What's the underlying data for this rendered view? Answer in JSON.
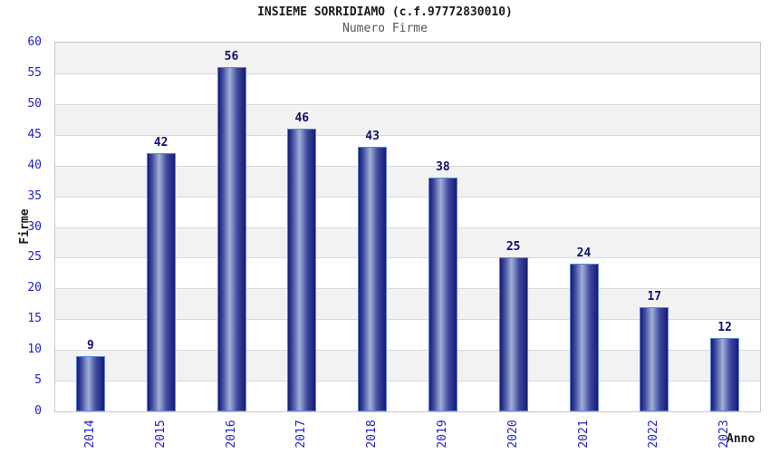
{
  "chart_data": {
    "type": "bar",
    "title": "INSIEME SORRIDIAMO (c.f.97772830010)",
    "subtitle": "Numero Firme",
    "xlabel": "Anno",
    "ylabel": "Firme",
    "categories": [
      "2014",
      "2015",
      "2016",
      "2017",
      "2018",
      "2019",
      "2020",
      "2021",
      "2022",
      "2023"
    ],
    "values": [
      9,
      42,
      56,
      46,
      43,
      38,
      25,
      24,
      17,
      12
    ],
    "ylim": [
      0,
      60
    ],
    "ytick_step": 5,
    "grid": true,
    "legend": "none",
    "bar_value_labels": true,
    "colors": {
      "tick_label": "#2222cc",
      "value_label": "#10106e",
      "title": "#1a1a1a",
      "subtitle": "#555555",
      "axis_label": "#1a1a1a",
      "bar_dark": "#191975",
      "bar_mid": "#3d4a9e",
      "bar_light": "#a3b0d5",
      "bar_border": "#5d85d6",
      "band_gray": "#f2f2f2",
      "band_white": "#ffffff",
      "grid_line": "#d9d9d9",
      "plot_border": "#c8c8c8"
    }
  }
}
